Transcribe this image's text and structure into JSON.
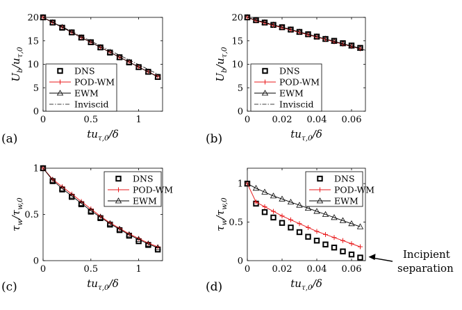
{
  "chart_data": [
    {
      "panel": "(a)",
      "type": "line",
      "xlabel": "tu_{τ,0}/δ",
      "ylabel": "U_b/u_{τ,0}",
      "xlim": [
        0,
        1.25
      ],
      "ylim": [
        0,
        20
      ],
      "xticks": [
        0,
        0.5,
        1
      ],
      "yticks": [
        0,
        5,
        10,
        15,
        20
      ],
      "xtick_labels": [
        "0",
        "0.5",
        "1"
      ],
      "ytick_labels": [
        "0",
        "5",
        "10",
        "15",
        "20"
      ],
      "legend_position": "bottom-left",
      "series": [
        {
          "name": "DNS",
          "style": "squares-black",
          "x": [
            0,
            0.1,
            0.2,
            0.3,
            0.4,
            0.5,
            0.6,
            0.7,
            0.8,
            0.9,
            1.0,
            1.1,
            1.2
          ],
          "y": [
            20.0,
            18.9,
            17.8,
            16.8,
            15.7,
            14.7,
            13.6,
            12.5,
            11.5,
            10.4,
            9.4,
            8.4,
            7.3
          ]
        },
        {
          "name": "POD-WM",
          "style": "red-plus",
          "x": [
            0,
            0.1,
            0.2,
            0.3,
            0.4,
            0.5,
            0.6,
            0.7,
            0.8,
            0.9,
            1.0,
            1.1,
            1.2
          ],
          "y": [
            20.0,
            18.9,
            17.9,
            16.8,
            15.7,
            14.7,
            13.6,
            12.6,
            11.5,
            10.5,
            9.4,
            8.4,
            7.4
          ]
        },
        {
          "name": "EWM",
          "style": "triangles-black",
          "x": [
            0,
            0.1,
            0.2,
            0.3,
            0.4,
            0.5,
            0.6,
            0.7,
            0.8,
            0.9,
            1.0,
            1.1,
            1.2
          ],
          "y": [
            20.0,
            18.9,
            17.9,
            16.8,
            15.7,
            14.7,
            13.6,
            12.6,
            11.5,
            10.5,
            9.4,
            8.4,
            7.3
          ]
        },
        {
          "name": "Inviscid",
          "style": "dashdot-black",
          "x": [
            0,
            1.22
          ],
          "y": [
            20.0,
            7.7
          ]
        }
      ]
    },
    {
      "panel": "(b)",
      "type": "line",
      "xlabel": "tu_{τ,0}/δ",
      "ylabel": "U_b/u_{τ,0}",
      "xlim": [
        0,
        0.068
      ],
      "ylim": [
        0,
        20
      ],
      "xticks": [
        0,
        0.02,
        0.04,
        0.06
      ],
      "yticks": [
        0,
        5,
        10,
        15,
        20
      ],
      "xtick_labels": [
        "0",
        "0.02",
        "0.04",
        "0.06"
      ],
      "ytick_labels": [
        "0",
        "5",
        "10",
        "15",
        "20"
      ],
      "legend_position": "bottom-left",
      "series": [
        {
          "name": "DNS",
          "style": "squares-black",
          "x": [
            0,
            0.005,
            0.01,
            0.015,
            0.02,
            0.025,
            0.03,
            0.035,
            0.04,
            0.045,
            0.05,
            0.055,
            0.06,
            0.065
          ],
          "y": [
            20.0,
            19.4,
            18.9,
            18.4,
            17.9,
            17.4,
            16.9,
            16.4,
            15.9,
            15.4,
            15.0,
            14.5,
            14.0,
            13.5
          ]
        },
        {
          "name": "POD-WM",
          "style": "red-plus",
          "x": [
            0,
            0.005,
            0.01,
            0.015,
            0.02,
            0.025,
            0.03,
            0.035,
            0.04,
            0.045,
            0.05,
            0.055,
            0.06,
            0.065
          ],
          "y": [
            20.0,
            19.3,
            18.8,
            18.3,
            17.8,
            17.3,
            16.8,
            16.3,
            15.8,
            15.3,
            14.8,
            14.3,
            13.8,
            13.3
          ]
        },
        {
          "name": "EWM",
          "style": "triangles-black",
          "x": [
            0,
            0.005,
            0.01,
            0.015,
            0.02,
            0.025,
            0.03,
            0.035,
            0.04,
            0.045,
            0.05,
            0.055,
            0.06,
            0.065
          ],
          "y": [
            20.0,
            19.4,
            18.9,
            18.4,
            17.9,
            17.4,
            16.9,
            16.4,
            15.9,
            15.4,
            14.9,
            14.4,
            13.9,
            13.4
          ]
        },
        {
          "name": "Inviscid",
          "style": "dashdot-black",
          "x": [
            0,
            0.068
          ],
          "y": [
            20.0,
            13.0
          ]
        }
      ]
    },
    {
      "panel": "(c)",
      "type": "line",
      "xlabel": "tu_{τ,0}/δ",
      "ylabel": "τ_w/τ_{w,0}",
      "xlim": [
        0,
        1.25
      ],
      "ylim": [
        0,
        1
      ],
      "xticks": [
        0,
        0.5,
        1
      ],
      "yticks": [
        0,
        0.5,
        1
      ],
      "xtick_labels": [
        "0",
        "0.5",
        "1"
      ],
      "ytick_labels": [
        "0",
        "0.5",
        "1"
      ],
      "legend_position": "top-right",
      "series": [
        {
          "name": "DNS",
          "style": "squares-black",
          "x": [
            0,
            0.1,
            0.2,
            0.3,
            0.4,
            0.5,
            0.6,
            0.7,
            0.8,
            0.9,
            1.0,
            1.1,
            1.2
          ],
          "y": [
            1.0,
            0.86,
            0.77,
            0.69,
            0.61,
            0.53,
            0.46,
            0.39,
            0.33,
            0.27,
            0.21,
            0.17,
            0.12
          ]
        },
        {
          "name": "POD-WM",
          "style": "red-plus",
          "x": [
            0,
            0.1,
            0.2,
            0.3,
            0.4,
            0.5,
            0.6,
            0.7,
            0.8,
            0.9,
            1.0,
            1.1,
            1.2
          ],
          "y": [
            1.0,
            0.88,
            0.8,
            0.72,
            0.64,
            0.56,
            0.48,
            0.41,
            0.35,
            0.29,
            0.24,
            0.19,
            0.15
          ]
        },
        {
          "name": "EWM",
          "style": "triangles-black",
          "x": [
            0,
            0.1,
            0.2,
            0.3,
            0.4,
            0.5,
            0.6,
            0.7,
            0.8,
            0.9,
            1.0,
            1.1,
            1.2
          ],
          "y": [
            1.0,
            0.87,
            0.78,
            0.7,
            0.62,
            0.54,
            0.47,
            0.4,
            0.34,
            0.28,
            0.23,
            0.18,
            0.14
          ]
        }
      ]
    },
    {
      "panel": "(d)",
      "type": "line",
      "xlabel": "tu_{τ,0}/δ",
      "ylabel": "τ_w/τ_{w,0}",
      "xlim": [
        0,
        0.068
      ],
      "ylim": [
        0,
        1.2
      ],
      "xticks": [
        0,
        0.02,
        0.04,
        0.06
      ],
      "yticks": [
        0,
        0.5,
        1
      ],
      "xtick_labels": [
        "0",
        "0.02",
        "0.04",
        "0.06"
      ],
      "ytick_labels": [
        "0",
        "0.5",
        "1"
      ],
      "legend_position": "top-right",
      "annotation": {
        "text": "Incipient separation",
        "lines": [
          "Incipient",
          "separation"
        ],
        "points_to": {
          "x": 0.065,
          "y": 0.04
        }
      },
      "series": [
        {
          "name": "DNS",
          "style": "squares-black",
          "x": [
            0,
            0.005,
            0.01,
            0.015,
            0.02,
            0.025,
            0.03,
            0.035,
            0.04,
            0.045,
            0.05,
            0.055,
            0.06,
            0.065
          ],
          "y": [
            1.0,
            0.74,
            0.63,
            0.56,
            0.49,
            0.43,
            0.37,
            0.31,
            0.26,
            0.21,
            0.17,
            0.12,
            0.08,
            0.04
          ]
        },
        {
          "name": "POD-WM",
          "style": "red-plus",
          "x": [
            0,
            0.005,
            0.01,
            0.015,
            0.02,
            0.025,
            0.03,
            0.035,
            0.04,
            0.045,
            0.05,
            0.055,
            0.06,
            0.065
          ],
          "y": [
            1.0,
            0.76,
            0.7,
            0.64,
            0.58,
            0.53,
            0.48,
            0.43,
            0.38,
            0.34,
            0.3,
            0.26,
            0.22,
            0.18
          ]
        },
        {
          "name": "EWM",
          "style": "triangles-black",
          "x": [
            0,
            0.005,
            0.01,
            0.015,
            0.02,
            0.025,
            0.03,
            0.035,
            0.04,
            0.045,
            0.05,
            0.055,
            0.06,
            0.065
          ],
          "y": [
            1.0,
            0.94,
            0.89,
            0.84,
            0.8,
            0.76,
            0.72,
            0.68,
            0.64,
            0.6,
            0.56,
            0.52,
            0.48,
            0.44
          ]
        }
      ]
    }
  ],
  "colors": {
    "pod_wm": "#e8191b",
    "black": "#000000"
  }
}
